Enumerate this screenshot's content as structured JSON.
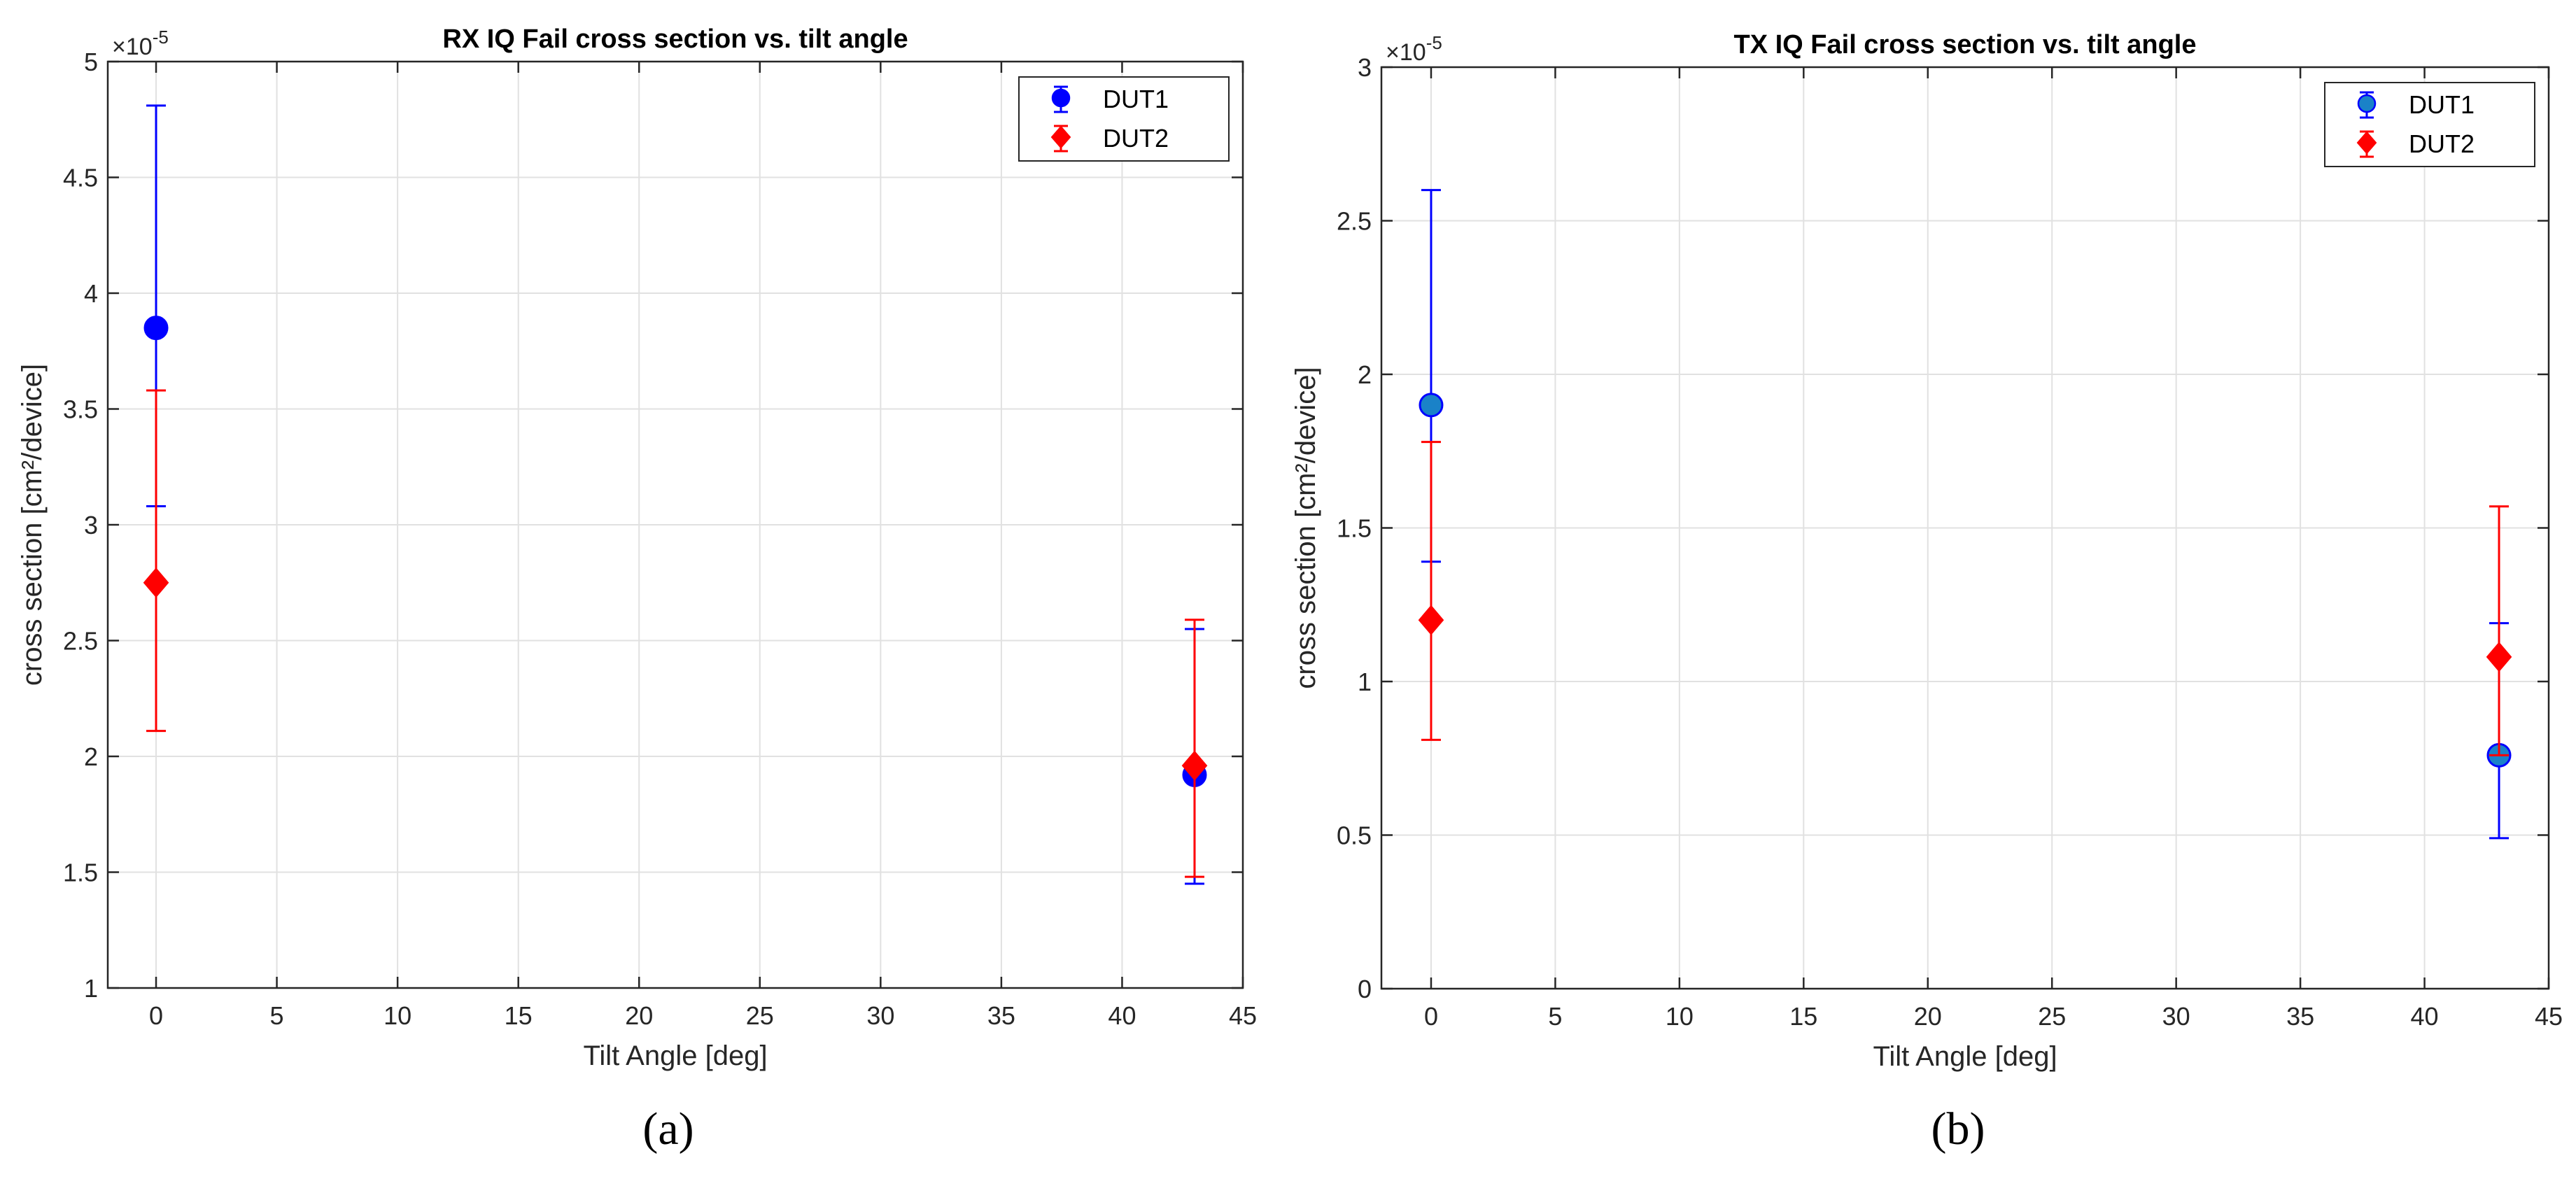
{
  "chart_data": [
    {
      "type": "scatter",
      "panel_label": "(a)",
      "title": "RX IQ Fail cross section vs. tilt angle",
      "xlabel": "Tilt Angle [deg]",
      "ylabel": "cross section [cm²/device]",
      "exponent_base": "×10",
      "exponent_power": "-5",
      "xlim": [
        -2,
        45
      ],
      "ylim": [
        1,
        5
      ],
      "xticks": [
        0,
        5,
        10,
        15,
        20,
        25,
        30,
        35,
        40,
        45
      ],
      "xtick_labels": [
        "0",
        "5",
        "10",
        "15",
        "20",
        "25",
        "30",
        "35",
        "40",
        "45"
      ],
      "yticks": [
        1,
        1.5,
        2,
        2.5,
        3,
        3.5,
        4,
        4.5,
        5
      ],
      "ytick_labels": [
        "1",
        "1.5",
        "2",
        "2.5",
        "3",
        "3.5",
        "4",
        "4.5",
        "5"
      ],
      "grid": true,
      "legend_position": "top-right",
      "series": [
        {
          "name": "DUT1",
          "color": "#0000ff",
          "fill": "#0000ff",
          "marker": "circle",
          "points": [
            {
              "x": 0,
              "y": 3.85,
              "low": 3.08,
              "high": 4.81
            },
            {
              "x": 43,
              "y": 1.92,
              "low": 1.45,
              "high": 2.55
            }
          ]
        },
        {
          "name": "DUT2",
          "color": "#ff0000",
          "fill": "#ff0000",
          "marker": "diamond",
          "points": [
            {
              "x": 0,
              "y": 2.75,
              "low": 2.11,
              "high": 3.58
            },
            {
              "x": 43,
              "y": 1.96,
              "low": 1.48,
              "high": 2.59
            }
          ]
        }
      ]
    },
    {
      "type": "scatter",
      "panel_label": "(b)",
      "title": "TX IQ Fail cross section vs. tilt angle",
      "xlabel": "Tilt Angle [deg]",
      "ylabel": "cross section [cm²/device]",
      "exponent_base": "×10",
      "exponent_power": "-5",
      "xlim": [
        -2,
        45
      ],
      "ylim": [
        0,
        3
      ],
      "xticks": [
        0,
        5,
        10,
        15,
        20,
        25,
        30,
        35,
        40,
        45
      ],
      "xtick_labels": [
        "0",
        "5",
        "10",
        "15",
        "20",
        "25",
        "30",
        "35",
        "40",
        "45"
      ],
      "yticks": [
        0,
        0.5,
        1,
        1.5,
        2,
        2.5,
        3
      ],
      "ytick_labels": [
        "0",
        "0.5",
        "1",
        "1.5",
        "2",
        "2.5",
        "3"
      ],
      "grid": true,
      "legend_position": "top-right",
      "series": [
        {
          "name": "DUT1",
          "color": "#0000ff",
          "fill": "#1a82c8",
          "marker": "circle",
          "points": [
            {
              "x": 0,
              "y": 1.9,
              "low": 1.39,
              "high": 2.6
            },
            {
              "x": 43,
              "y": 0.76,
              "low": 0.49,
              "high": 1.19
            }
          ]
        },
        {
          "name": "DUT2",
          "color": "#ff0000",
          "fill": "#ff0000",
          "marker": "diamond",
          "points": [
            {
              "x": 0,
              "y": 1.2,
              "low": 0.81,
              "high": 1.78
            },
            {
              "x": 43,
              "y": 1.08,
              "low": 0.76,
              "high": 1.57
            }
          ]
        }
      ]
    }
  ]
}
